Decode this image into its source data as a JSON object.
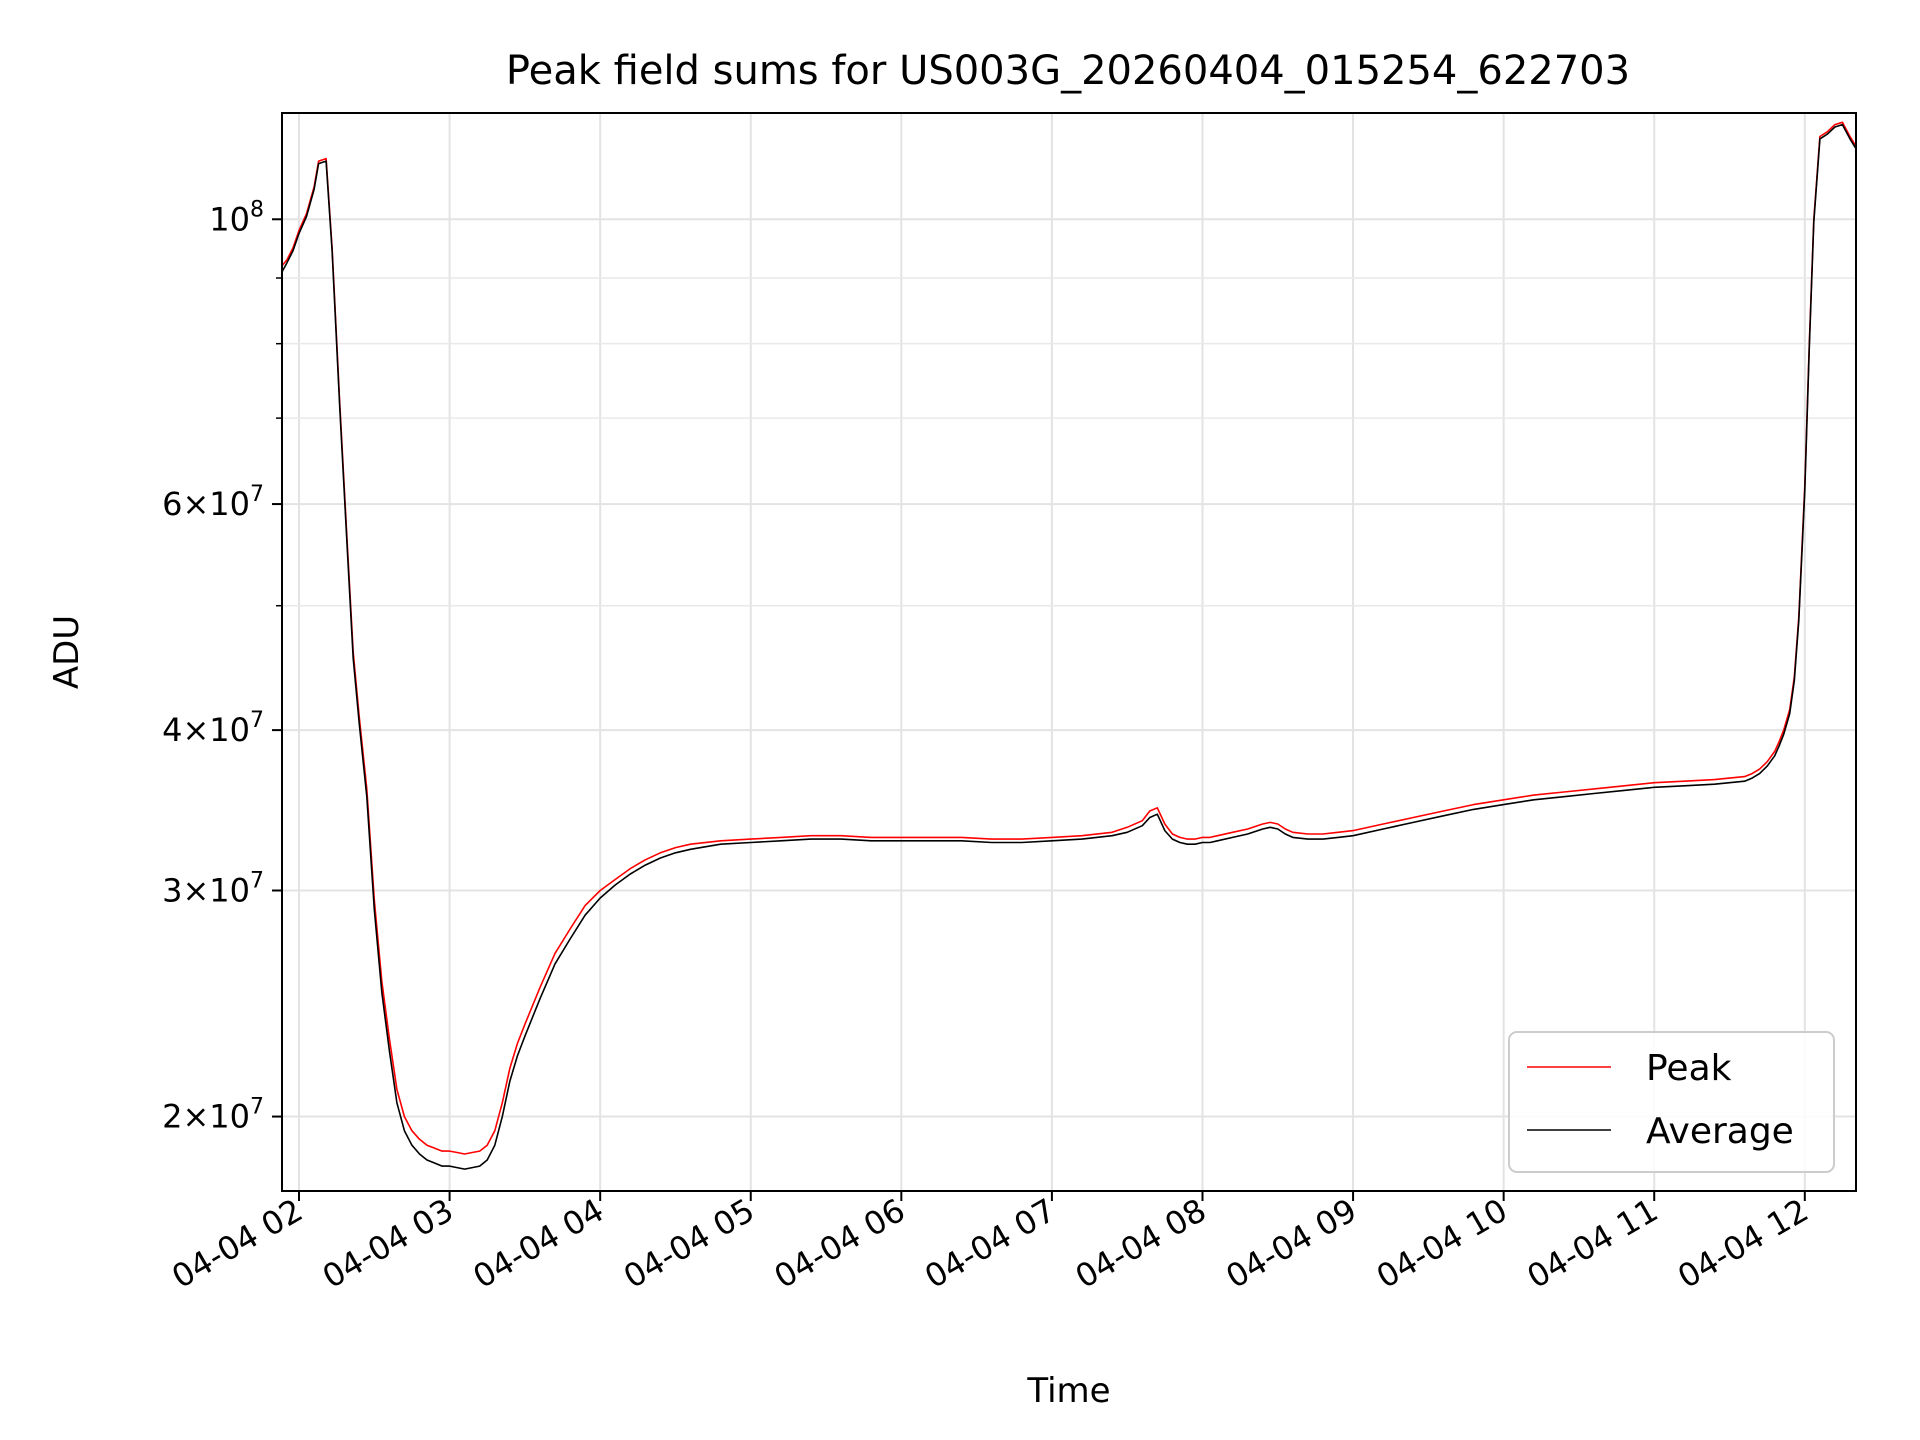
{
  "chart_data": {
    "type": "line",
    "title": "Peak field sums for US003G_20260404_015254_622703",
    "xlabel": "Time",
    "ylabel": "ADU",
    "x_unit": "hours since 2026-04-04 00:00",
    "xlim": [
      1.887,
      12.34
    ],
    "ylim": [
      17500000,
      121000000
    ],
    "yscale": "log",
    "grid": true,
    "legend_position": "lower-right",
    "x_ticks": [
      {
        "value": 2,
        "label": "04-04 02"
      },
      {
        "value": 3,
        "label": "04-04 03"
      },
      {
        "value": 4,
        "label": "04-04 04"
      },
      {
        "value": 5,
        "label": "04-04 05"
      },
      {
        "value": 6,
        "label": "04-04 06"
      },
      {
        "value": 7,
        "label": "04-04 07"
      },
      {
        "value": 8,
        "label": "04-04 08"
      },
      {
        "value": 9,
        "label": "04-04 09"
      },
      {
        "value": 10,
        "label": "04-04 10"
      },
      {
        "value": 11,
        "label": "04-04 11"
      },
      {
        "value": 12,
        "label": "04-04 12"
      }
    ],
    "y_ticks": [
      {
        "value": 20000000,
        "mantissa": "2×10",
        "exp": "7"
      },
      {
        "value": 30000000,
        "mantissa": "3×10",
        "exp": "7"
      },
      {
        "value": 40000000,
        "mantissa": "4×10",
        "exp": "7"
      },
      {
        "value": 60000000,
        "mantissa": "6×10",
        "exp": "7"
      },
      {
        "value": 100000000,
        "mantissa": "10",
        "exp": "8"
      }
    ],
    "y_minor_ticks": [
      50000000,
      70000000,
      80000000,
      90000000
    ],
    "series": [
      {
        "name": "Peak",
        "color": "#ff0000",
        "x": [
          1.887,
          1.92,
          1.96,
          2.0,
          2.05,
          2.1,
          2.13,
          2.18,
          2.22,
          2.27,
          2.32,
          2.36,
          2.4,
          2.45,
          2.5,
          2.55,
          2.6,
          2.65,
          2.7,
          2.75,
          2.8,
          2.85,
          2.9,
          2.95,
          3.0,
          3.05,
          3.1,
          3.15,
          3.2,
          3.25,
          3.3,
          3.35,
          3.4,
          3.45,
          3.5,
          3.6,
          3.7,
          3.8,
          3.9,
          4.0,
          4.1,
          4.2,
          4.3,
          4.4,
          4.5,
          4.6,
          4.8,
          5.0,
          5.2,
          5.4,
          5.6,
          5.8,
          6.0,
          6.2,
          6.4,
          6.6,
          6.8,
          7.0,
          7.2,
          7.4,
          7.5,
          7.6,
          7.65,
          7.7,
          7.75,
          7.8,
          7.85,
          7.9,
          7.95,
          8.0,
          8.05,
          8.1,
          8.2,
          8.3,
          8.4,
          8.45,
          8.5,
          8.55,
          8.6,
          8.7,
          8.8,
          8.9,
          9.0,
          9.2,
          9.4,
          9.6,
          9.8,
          10.0,
          10.2,
          10.4,
          10.6,
          10.8,
          11.0,
          11.2,
          11.4,
          11.5,
          11.6,
          11.65,
          11.7,
          11.75,
          11.8,
          11.83,
          11.86,
          11.9,
          11.93,
          11.96,
          12.0,
          12.03,
          12.06,
          12.1,
          12.15,
          12.2,
          12.25,
          12.3,
          12.34
        ],
        "y": [
          92000000,
          93000000,
          95000000,
          98000000,
          101000000,
          106000000,
          111000000,
          111500000,
          95000000,
          72000000,
          56000000,
          46000000,
          41000000,
          36000000,
          29500000,
          25500000,
          23000000,
          21000000,
          20000000,
          19500000,
          19200000,
          19000000,
          18900000,
          18800000,
          18800000,
          18750000,
          18700000,
          18750000,
          18800000,
          19000000,
          19500000,
          20500000,
          21800000,
          22800000,
          23600000,
          25200000,
          26800000,
          28000000,
          29200000,
          30000000,
          30600000,
          31200000,
          31700000,
          32100000,
          32400000,
          32600000,
          32800000,
          32900000,
          33000000,
          33100000,
          33100000,
          33000000,
          33000000,
          33000000,
          33000000,
          32900000,
          32900000,
          33000000,
          33100000,
          33300000,
          33600000,
          34000000,
          34600000,
          34800000,
          33800000,
          33200000,
          33000000,
          32900000,
          32900000,
          33000000,
          33000000,
          33100000,
          33300000,
          33500000,
          33800000,
          33900000,
          33800000,
          33500000,
          33300000,
          33200000,
          33200000,
          33300000,
          33400000,
          33800000,
          34200000,
          34600000,
          35000000,
          35300000,
          35600000,
          35800000,
          36000000,
          36200000,
          36400000,
          36500000,
          36600000,
          36700000,
          36800000,
          37000000,
          37300000,
          37800000,
          38500000,
          39200000,
          40000000,
          41500000,
          44000000,
          49000000,
          62000000,
          80000000,
          100000000,
          116000000,
          117000000,
          118500000,
          119000000,
          116000000,
          114000000
        ]
      },
      {
        "name": "Average",
        "color": "#000000",
        "x": [
          1.887,
          1.92,
          1.96,
          2.0,
          2.05,
          2.1,
          2.13,
          2.18,
          2.22,
          2.27,
          2.32,
          2.36,
          2.4,
          2.45,
          2.5,
          2.55,
          2.6,
          2.65,
          2.7,
          2.75,
          2.8,
          2.85,
          2.9,
          2.95,
          3.0,
          3.05,
          3.1,
          3.15,
          3.2,
          3.25,
          3.3,
          3.35,
          3.4,
          3.45,
          3.5,
          3.6,
          3.7,
          3.8,
          3.9,
          4.0,
          4.1,
          4.2,
          4.3,
          4.4,
          4.5,
          4.6,
          4.8,
          5.0,
          5.2,
          5.4,
          5.6,
          5.8,
          6.0,
          6.2,
          6.4,
          6.6,
          6.8,
          7.0,
          7.2,
          7.4,
          7.5,
          7.6,
          7.65,
          7.7,
          7.75,
          7.8,
          7.85,
          7.9,
          7.95,
          8.0,
          8.05,
          8.1,
          8.2,
          8.3,
          8.4,
          8.45,
          8.5,
          8.55,
          8.6,
          8.7,
          8.8,
          8.9,
          9.0,
          9.2,
          9.4,
          9.6,
          9.8,
          10.0,
          10.2,
          10.4,
          10.6,
          10.8,
          11.0,
          11.2,
          11.4,
          11.5,
          11.6,
          11.65,
          11.7,
          11.75,
          11.8,
          11.83,
          11.86,
          11.9,
          11.93,
          11.96,
          12.0,
          12.03,
          12.06,
          12.1,
          12.15,
          12.2,
          12.25,
          12.3,
          12.34
        ],
        "y": [
          91000000,
          92500000,
          94500000,
          97500000,
          100500000,
          105500000,
          110500000,
          111000000,
          94500000,
          71500000,
          55500000,
          45500000,
          40500000,
          35500000,
          29000000,
          25000000,
          22500000,
          20500000,
          19500000,
          19000000,
          18700000,
          18500000,
          18400000,
          18300000,
          18300000,
          18250000,
          18200000,
          18250000,
          18300000,
          18500000,
          19000000,
          20000000,
          21300000,
          22300000,
          23100000,
          24700000,
          26300000,
          27500000,
          28700000,
          29600000,
          30300000,
          30900000,
          31400000,
          31800000,
          32100000,
          32300000,
          32600000,
          32700000,
          32800000,
          32900000,
          32900000,
          32800000,
          32800000,
          32800000,
          32800000,
          32700000,
          32700000,
          32800000,
          32900000,
          33100000,
          33300000,
          33700000,
          34200000,
          34400000,
          33400000,
          32900000,
          32700000,
          32600000,
          32600000,
          32700000,
          32700000,
          32800000,
          33000000,
          33200000,
          33500000,
          33600000,
          33500000,
          33200000,
          33000000,
          32900000,
          32900000,
          33000000,
          33100000,
          33500000,
          33900000,
          34300000,
          34700000,
          35000000,
          35300000,
          35500000,
          35700000,
          35900000,
          36100000,
          36200000,
          36300000,
          36400000,
          36500000,
          36700000,
          37000000,
          37500000,
          38200000,
          38900000,
          39700000,
          41200000,
          43700000,
          48700000,
          61500000,
          79500000,
          99500000,
          115500000,
          116500000,
          118000000,
          118500000,
          115500000,
          113500000
        ]
      }
    ]
  }
}
